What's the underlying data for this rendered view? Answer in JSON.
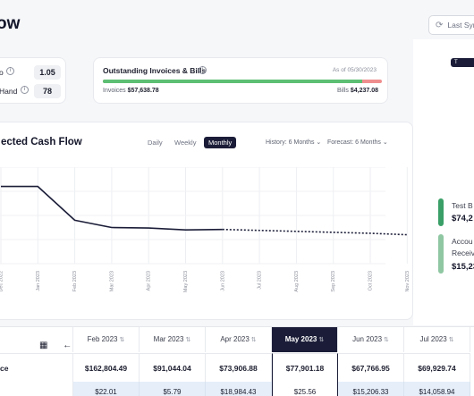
{
  "header": {
    "title": "ow",
    "sync_label": "Last Sync",
    "sync_icon": "sync-icon"
  },
  "ratios": [
    {
      "label": "o",
      "value": "1.05"
    },
    {
      "label": "Hand",
      "value": "78"
    }
  ],
  "invoices": {
    "title": "Outstanding Invoices & Bills",
    "as_of": "As of 05/30/2023",
    "invoices_label": "Invoices",
    "invoices_value": "$57,638.78",
    "bills_label": "Bills",
    "bills_value": "$4,237.08",
    "invoices_share": 0.93,
    "colors": {
      "invoices": "#5cbf73",
      "bills": "#ef8e8e"
    }
  },
  "chart_card": {
    "title": "ected Cash Flow",
    "toggles": [
      {
        "label": "Daily",
        "active": false
      },
      {
        "label": "Weekly",
        "active": false
      },
      {
        "label": "Monthly",
        "active": true
      }
    ],
    "history_label": "History: 6 Months",
    "forecast_label": "Forecast: 6 Months"
  },
  "chart_data": {
    "type": "line",
    "x": [
      "Dec 2022",
      "Jan 2023",
      "Feb 2023",
      "Mar 2023",
      "Apr 2023",
      "May 2023",
      "Jun 2023",
      "Jul 2023",
      "Aug 2023",
      "Sep 2023",
      "Oct 2023",
      "Nov 2023"
    ],
    "series": [
      {
        "values": [
          160000,
          160000,
          90000,
          75000,
          74000,
          70000,
          71000,
          null,
          null,
          null,
          null,
          null
        ],
        "style": "solid"
      },
      {
        "values": [
          null,
          null,
          null,
          null,
          null,
          null,
          71000,
          69000,
          67000,
          65000,
          63000,
          60000
        ],
        "style": "dotted"
      }
    ],
    "ylim": [
      0,
      200000
    ],
    "grid": true,
    "color": "#1b1d38"
  },
  "right_panel": {
    "button_label": "T",
    "kpis": [
      {
        "label": "Test B",
        "value": "$74,2",
        "color": "#3a9f67"
      },
      {
        "label_line1": "Accou",
        "label_line2": "Receiv",
        "value": "$15,23",
        "color": "#8fc7a2"
      }
    ]
  },
  "table": {
    "columns": [
      {
        "label": "Feb 2023",
        "active": false
      },
      {
        "label": "Mar 2023",
        "active": false
      },
      {
        "label": "Apr 2023",
        "active": false
      },
      {
        "label": "May 2023",
        "active": true
      },
      {
        "label": "Jun 2023",
        "active": false
      },
      {
        "label": "Jul 2023",
        "active": false
      }
    ],
    "row_label": "ce",
    "row1": [
      "$162,804.49",
      "$91,044.04",
      "$73,906.88",
      "$77,901.18",
      "$67,766.95",
      "$69,929.74"
    ],
    "row2": [
      "$22.01",
      "$5.79",
      "$18,984.43",
      "$25.56",
      "$15,206.33",
      "$14,058.94"
    ],
    "calendar_icon": "calendar-icon",
    "back_icon": "arrow-left-icon"
  }
}
